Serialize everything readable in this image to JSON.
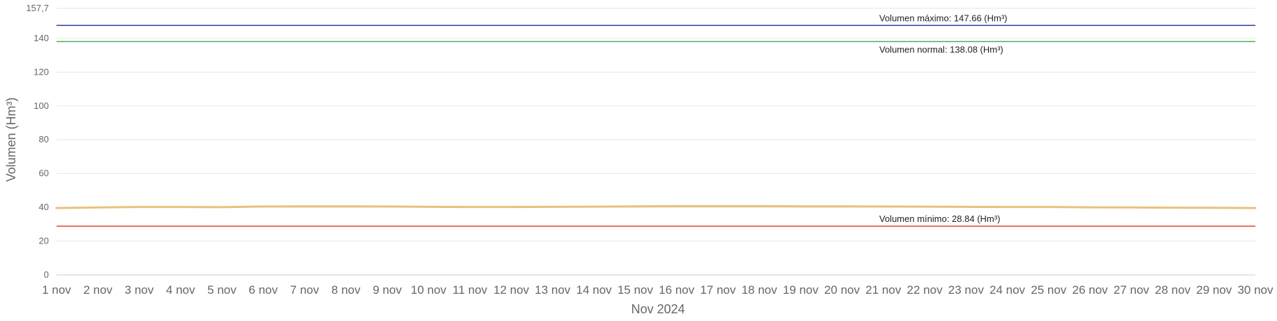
{
  "chart_data": {
    "type": "line",
    "ylabel": "Volumen (Hm³)",
    "xlabel": "Nov 2024",
    "ylim": [
      0,
      157.7
    ],
    "y_ticks": [
      "0",
      "20",
      "40",
      "60",
      "80",
      "100",
      "120",
      "140",
      "157,7"
    ],
    "y_tick_values": [
      0,
      20,
      40,
      60,
      80,
      100,
      120,
      140,
      157.7
    ],
    "categories": [
      "1 nov",
      "2 nov",
      "3 nov",
      "4 nov",
      "5 nov",
      "6 nov",
      "7 nov",
      "8 nov",
      "9 nov",
      "10 nov",
      "11 nov",
      "12 nov",
      "13 nov",
      "14 nov",
      "15 nov",
      "16 nov",
      "17 nov",
      "18 nov",
      "19 nov",
      "20 nov",
      "21 nov",
      "22 nov",
      "23 nov",
      "24 nov",
      "25 nov",
      "26 nov",
      "27 nov",
      "28 nov",
      "29 nov",
      "30 nov"
    ],
    "series": [
      {
        "color": "#e8c27a",
        "values": [
          39.6,
          39.9,
          40.2,
          40.2,
          40.1,
          40.5,
          40.6,
          40.6,
          40.5,
          40.3,
          40.2,
          40.2,
          40.3,
          40.4,
          40.6,
          40.7,
          40.7,
          40.7,
          40.6,
          40.6,
          40.5,
          40.4,
          40.3,
          40.2,
          40.2,
          40.0,
          39.9,
          39.8,
          39.7,
          39.6
        ]
      }
    ],
    "reference_lines": [
      {
        "label": "Volumen máximo: 147.66 (Hm³)",
        "value": 147.66,
        "color": "#2b3a9e"
      },
      {
        "label": "Volumen normal: 138.08 (Hm³)",
        "value": 138.08,
        "color": "#4caf50"
      },
      {
        "label": "Volumen mínimo: 28.84 (Hm³)",
        "value": 28.84,
        "color": "#e0453a"
      }
    ],
    "grid": true,
    "legend": "none"
  }
}
